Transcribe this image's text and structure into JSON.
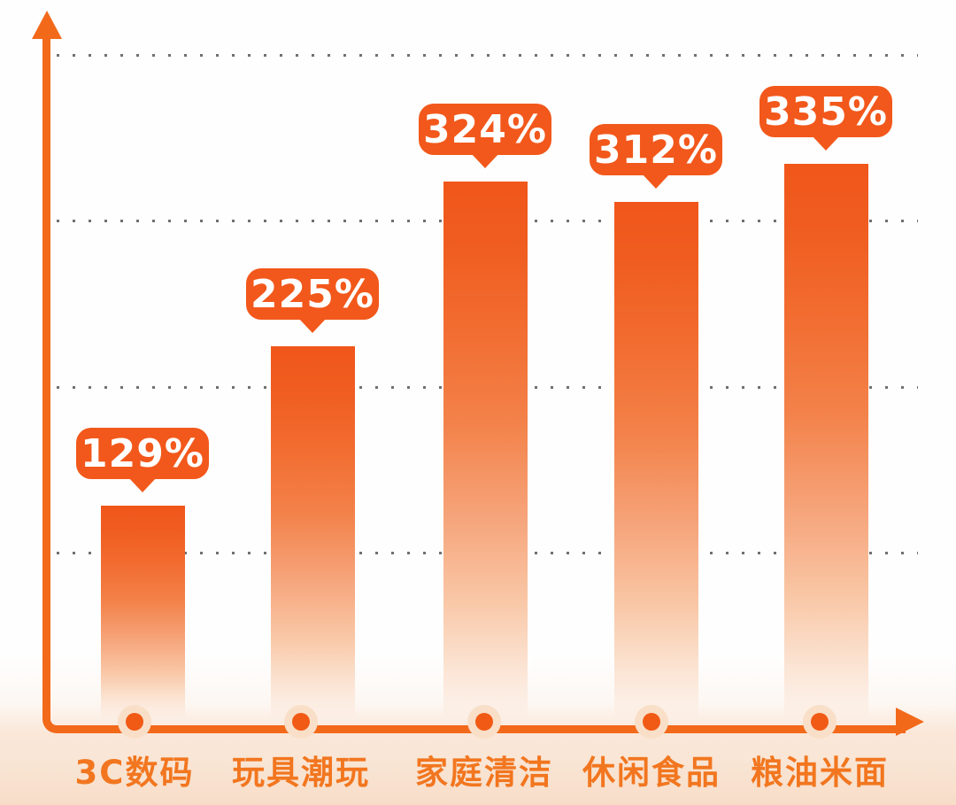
{
  "chart_data": {
    "type": "bar",
    "title": "",
    "xlabel": "",
    "ylabel": "",
    "categories": [
      "3C数码",
      "玩具潮玩",
      "家庭清洁",
      "休闲食品",
      "粮油米面"
    ],
    "values": [
      129,
      225,
      324,
      312,
      335
    ],
    "value_labels": [
      "129%",
      "225%",
      "312%",
      "335%"
    ],
    "value_labels_full": [
      "129%",
      "225%",
      "324%",
      "312%",
      "335%"
    ],
    "ylim": [
      0,
      430
    ],
    "gridline_values": [
      100,
      200,
      300,
      400
    ],
    "grid_style": "dotted-horizontal",
    "legend": "none",
    "colors": {
      "accent": "#f2581b",
      "bar_top": "#f1561a",
      "bar_fade": "#fcEEe5",
      "axis": "#f2691a",
      "category_label": "#f2761f",
      "grid_dot": "#4d4d4d",
      "dot": "#f15a15",
      "dot_halo": "#f9dfc8",
      "background": "#fefefe",
      "background_bottom": "#f7ddc8",
      "callout_text": "#ffffff"
    }
  }
}
